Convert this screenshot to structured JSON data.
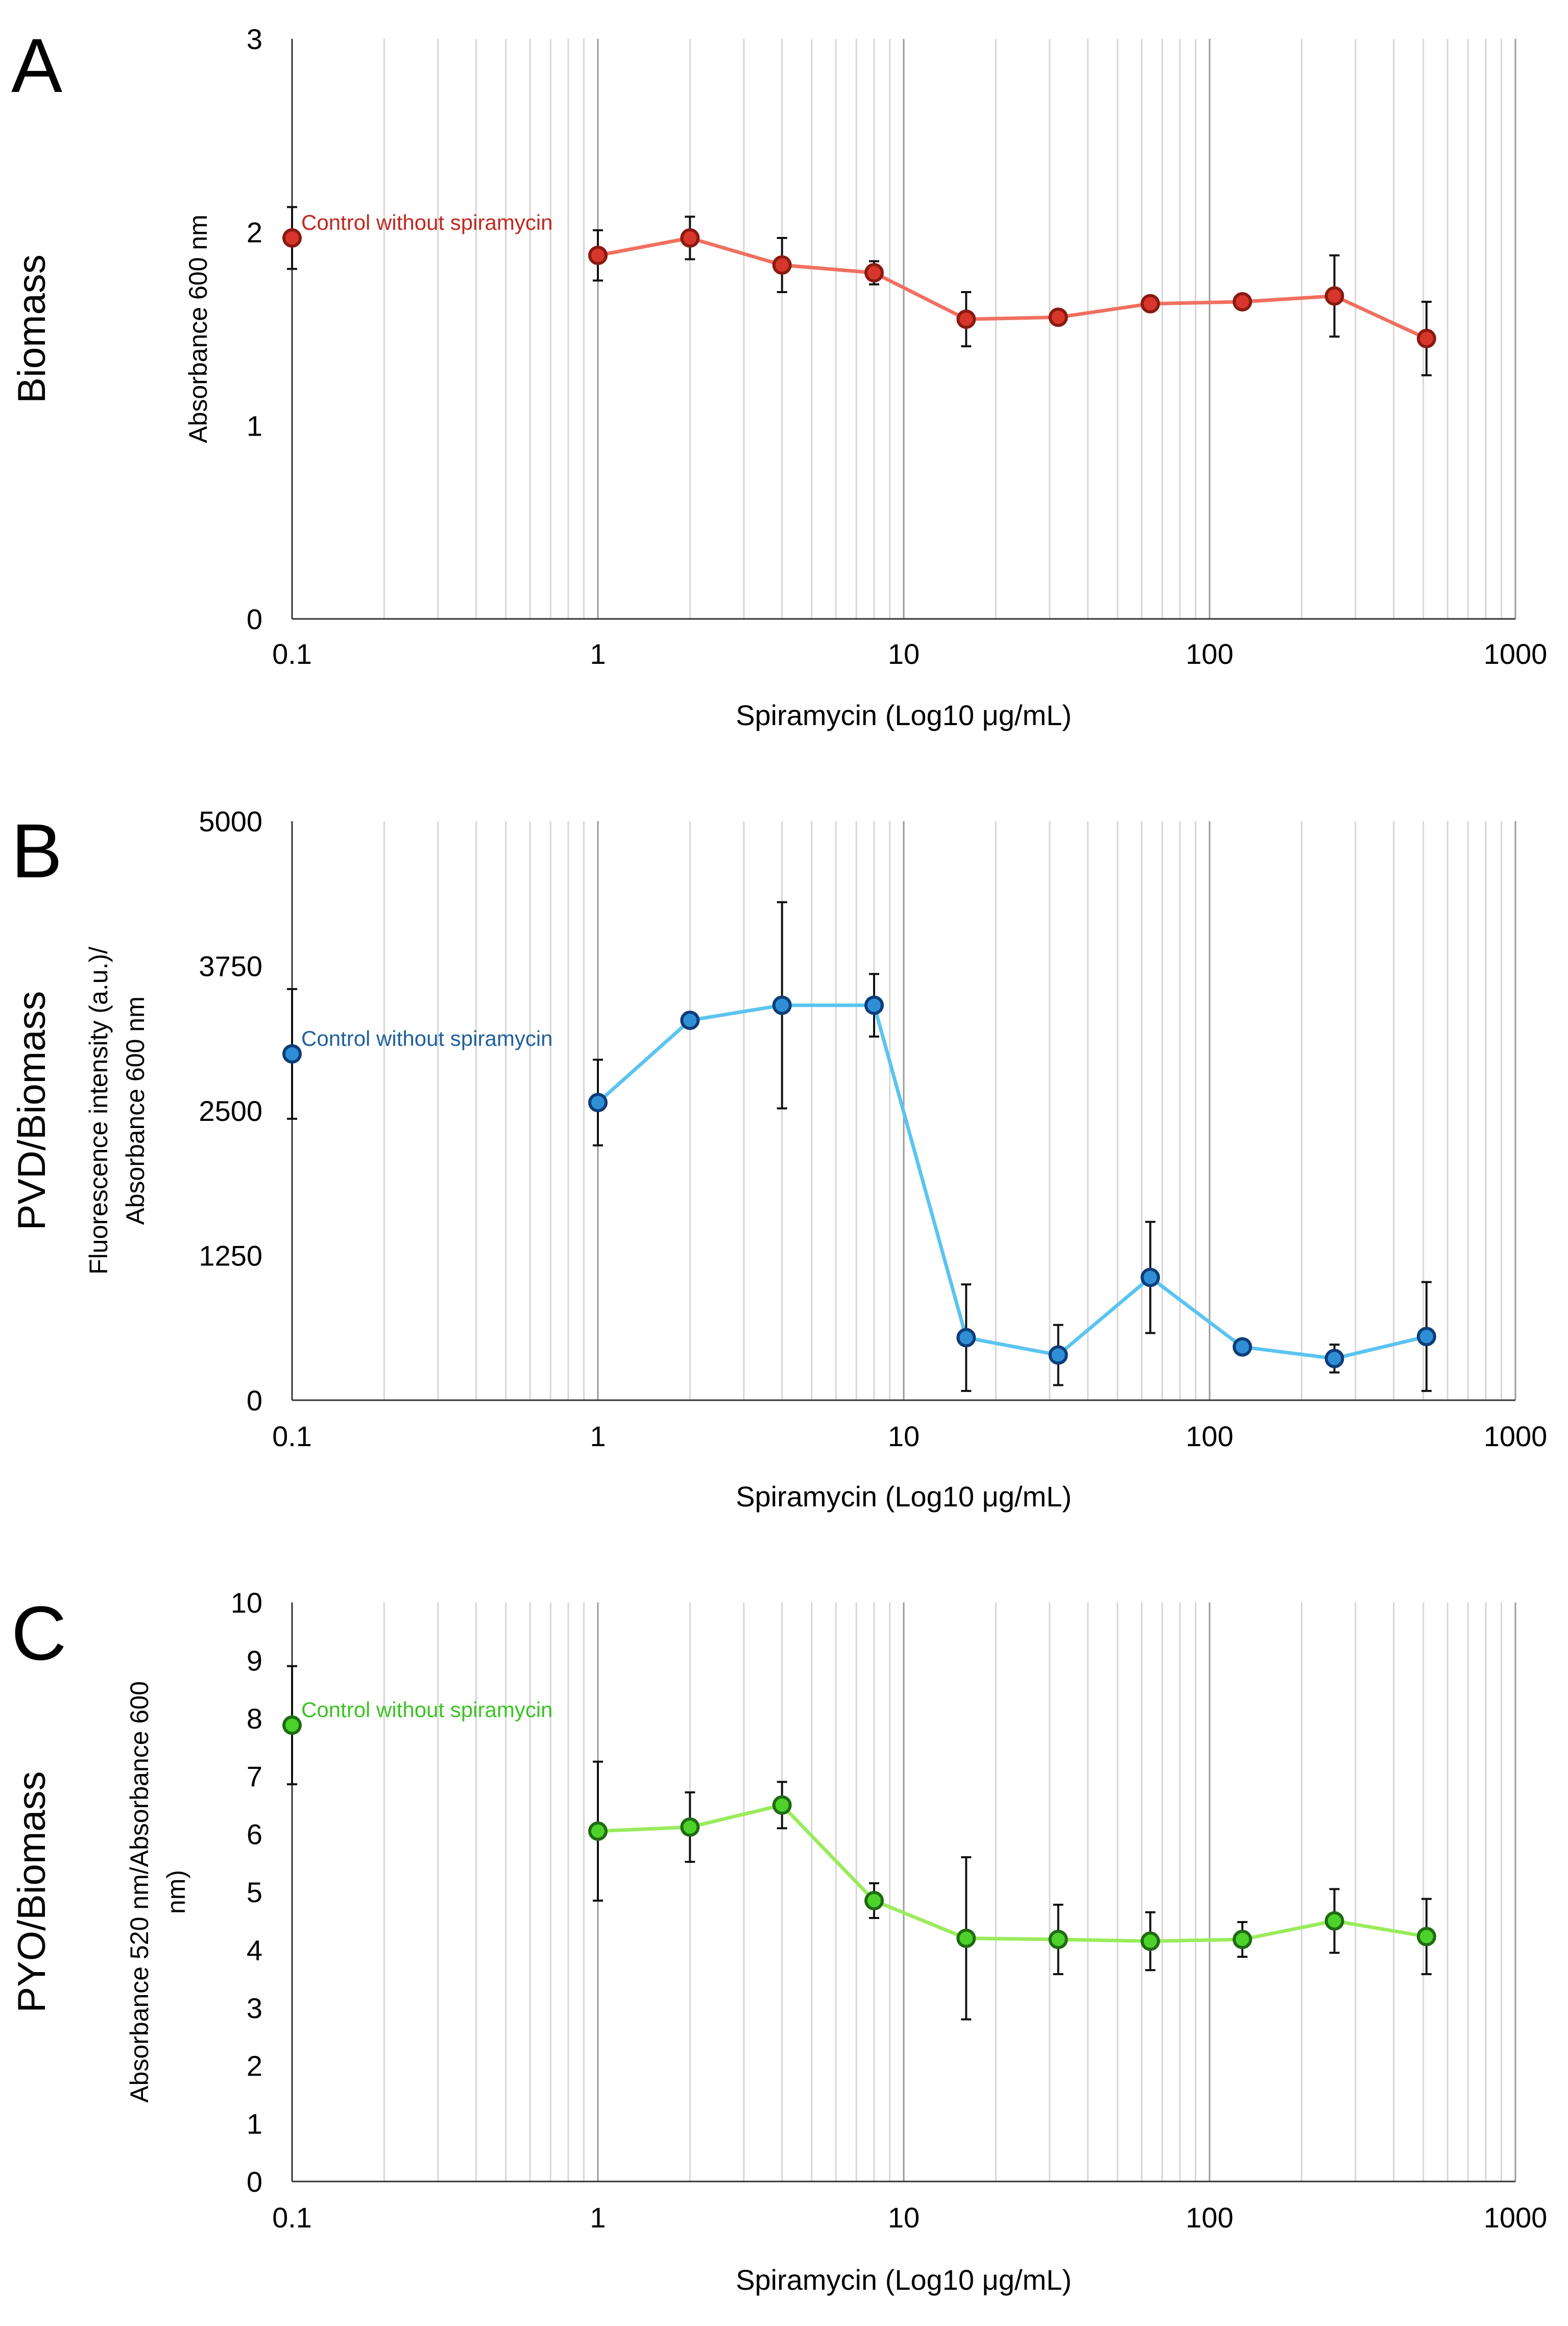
{
  "chart_data": [
    {
      "panel": "A",
      "type": "line",
      "title": "",
      "row_label": "Biomass",
      "ylabel_lines": [
        "Absorbance 600 nm"
      ],
      "xlabel": "Spiramycin (Log10 μg/mL)",
      "xscale": "log",
      "xlim": [
        0.1,
        1000
      ],
      "x_tick_labels": [
        "0.1",
        "1",
        "10",
        "100",
        "1000"
      ],
      "ylim": [
        0,
        3
      ],
      "y_ticks": [
        0,
        1,
        2,
        3
      ],
      "y_tick_labels": [
        "0",
        "1",
        "2",
        "3"
      ],
      "line_color": "#f07060",
      "marker_color": "#d9362b",
      "marker_edge": "#8a1a12",
      "control": {
        "x": 0.1,
        "y": 1.97,
        "err": 0.16,
        "label": "Control without spiramycin",
        "label_color": "#c0281e"
      },
      "series": [
        {
          "name": "Biomass",
          "x": [
            1,
            2,
            4,
            8,
            16,
            32,
            64,
            128,
            256,
            512
          ],
          "y": [
            1.88,
            1.97,
            1.83,
            1.79,
            1.55,
            1.56,
            1.63,
            1.64,
            1.67,
            1.45
          ],
          "err": [
            0.13,
            0.11,
            0.14,
            0.06,
            0.14,
            0.02,
            0.02,
            0.02,
            0.21,
            0.19
          ]
        }
      ]
    },
    {
      "panel": "B",
      "type": "line",
      "title": "",
      "row_label": "PVD/Biomass",
      "ylabel_lines": [
        "Fluorescence intensity (a.u.)/",
        "Absorbance 600 nm"
      ],
      "xlabel": "Spiramycin (Log10 μg/mL)",
      "xscale": "log",
      "xlim": [
        0.1,
        1000
      ],
      "x_tick_labels": [
        "0.1",
        "1",
        "10",
        "100",
        "1000"
      ],
      "ylim": [
        0,
        5000
      ],
      "y_ticks": [
        0,
        1250,
        2500,
        3750,
        5000
      ],
      "y_tick_labels": [
        "0",
        "1250",
        "2500",
        "3750",
        "5000"
      ],
      "line_color": "#5bc4f0",
      "marker_color": "#2f8fd6",
      "marker_edge": "#0d3d78",
      "control": {
        "x": 0.1,
        "y": 2990,
        "err": 560,
        "label": "Control without spiramycin",
        "label_color": "#1f5f9e"
      },
      "series": [
        {
          "name": "PVD/Biomass",
          "x": [
            1,
            2,
            4,
            8,
            16,
            32,
            64,
            128,
            256,
            512
          ],
          "y": [
            2570,
            3280,
            3410,
            3410,
            540,
            390,
            1060,
            460,
            360,
            550
          ],
          "err": [
            370,
            0,
            890,
            270,
            460,
            260,
            480,
            0,
            120,
            470
          ]
        }
      ]
    },
    {
      "panel": "C",
      "type": "line",
      "title": "",
      "row_label": "PYO/Biomass",
      "ylabel_lines": [
        "Absorbance 520 nm/Absorbance 600",
        "nm)"
      ],
      "xlabel": "Spiramycin (Log10 μg/mL)",
      "xscale": "log",
      "xlim": [
        0.1,
        1000
      ],
      "x_tick_labels": [
        "0.1",
        "1",
        "10",
        "100",
        "1000"
      ],
      "ylim": [
        0,
        10
      ],
      "y_ticks": [
        0,
        1,
        2,
        3,
        4,
        5,
        6,
        7,
        8,
        9,
        10
      ],
      "y_tick_labels": [
        "0",
        "1",
        "2",
        "3",
        "4",
        "5",
        "6",
        "7",
        "8",
        "9",
        "10"
      ],
      "line_color": "#9aeb5c",
      "marker_color": "#4cd22a",
      "marker_edge": "#1f6b12",
      "control": {
        "x": 0.1,
        "y": 7.88,
        "err": 1.02,
        "label": "Control without spiramycin",
        "label_color": "#3ac421"
      },
      "series": [
        {
          "name": "PYO/Biomass",
          "x": [
            1,
            2,
            4,
            8,
            16,
            32,
            64,
            128,
            256,
            512
          ],
          "y": [
            6.05,
            6.12,
            6.5,
            4.85,
            4.2,
            4.18,
            4.15,
            4.18,
            4.5,
            4.23
          ],
          "err": [
            1.2,
            0.6,
            0.4,
            0.3,
            1.4,
            0.6,
            0.5,
            0.3,
            0.55,
            0.65
          ]
        }
      ]
    }
  ]
}
